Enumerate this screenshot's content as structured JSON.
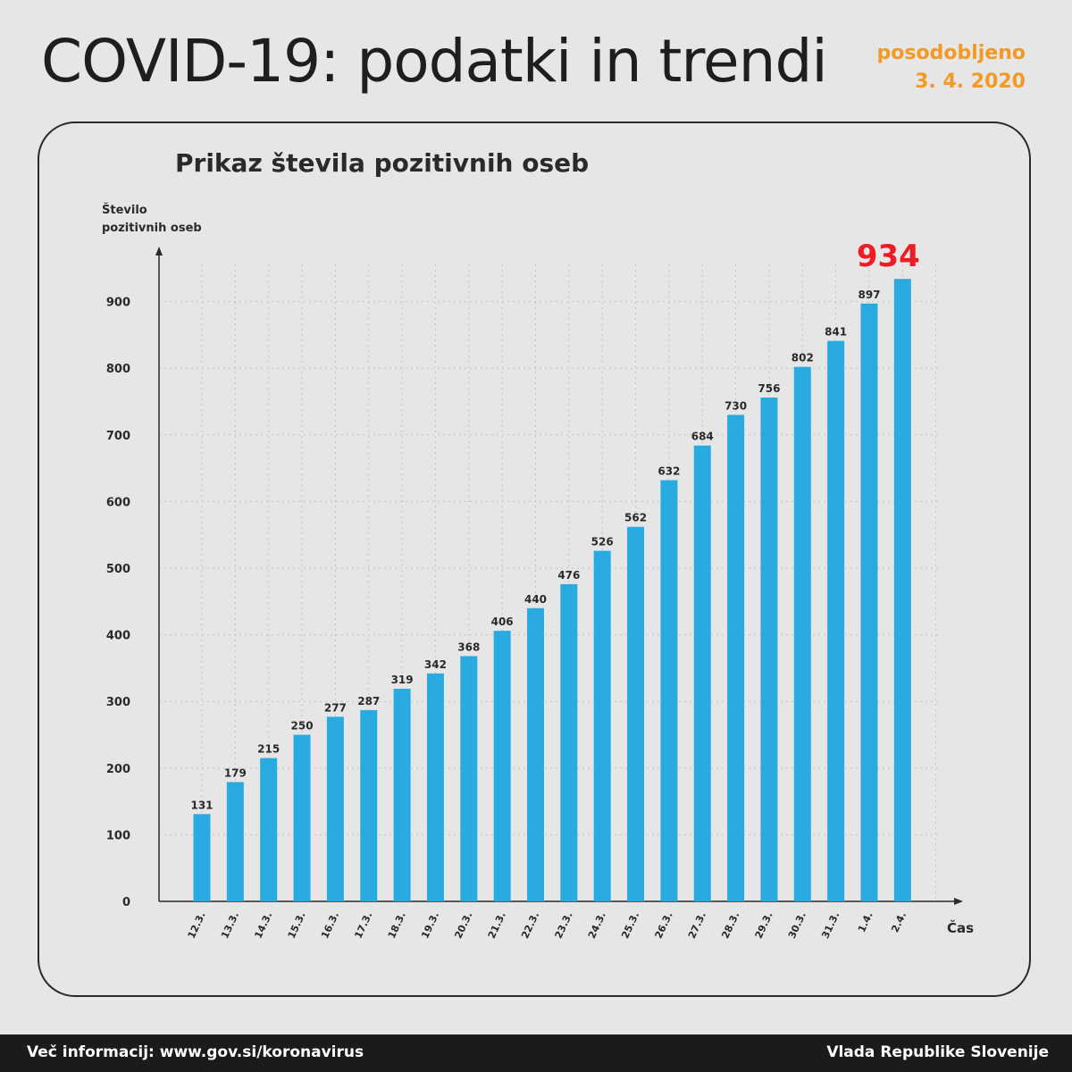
{
  "header": {
    "title": "COVID-19: podatki in trendi",
    "updated_label": "posodobljeno",
    "updated_date": "3. 4. 2020"
  },
  "chart_data": {
    "type": "bar",
    "title": "Prikaz števila pozitivnih oseb",
    "ylabel": "Število pozitivnih oseb",
    "ylabel_lines": [
      "Število",
      "pozitivnih oseb"
    ],
    "xlabel": "Čas",
    "categories": [
      "12.3.",
      "13.3.",
      "14.3.",
      "15.3.",
      "16.3.",
      "17.3.",
      "18.3.",
      "19.3.",
      "20.3.",
      "21.3.",
      "22.3.",
      "23.3.",
      "24.3.",
      "25.3.",
      "26.3.",
      "27.3.",
      "28.3.",
      "29.3.",
      "30.3.",
      "31.3.",
      "1.4.",
      "2.4."
    ],
    "values": [
      131,
      179,
      215,
      250,
      277,
      287,
      319,
      342,
      368,
      406,
      440,
      476,
      526,
      562,
      632,
      684,
      730,
      756,
      802,
      841,
      897,
      934
    ],
    "ylim": [
      0,
      950
    ],
    "yticks": [
      0,
      100,
      200,
      300,
      400,
      500,
      600,
      700,
      800,
      900
    ],
    "grid": true,
    "bar_color": "#29abe2",
    "highlight_color": "#ee1c25",
    "highlight_last": true
  },
  "footer": {
    "info": "Več informacij: www.gov.si/koronavirus",
    "source": "Vlada Republike Slovenije"
  }
}
